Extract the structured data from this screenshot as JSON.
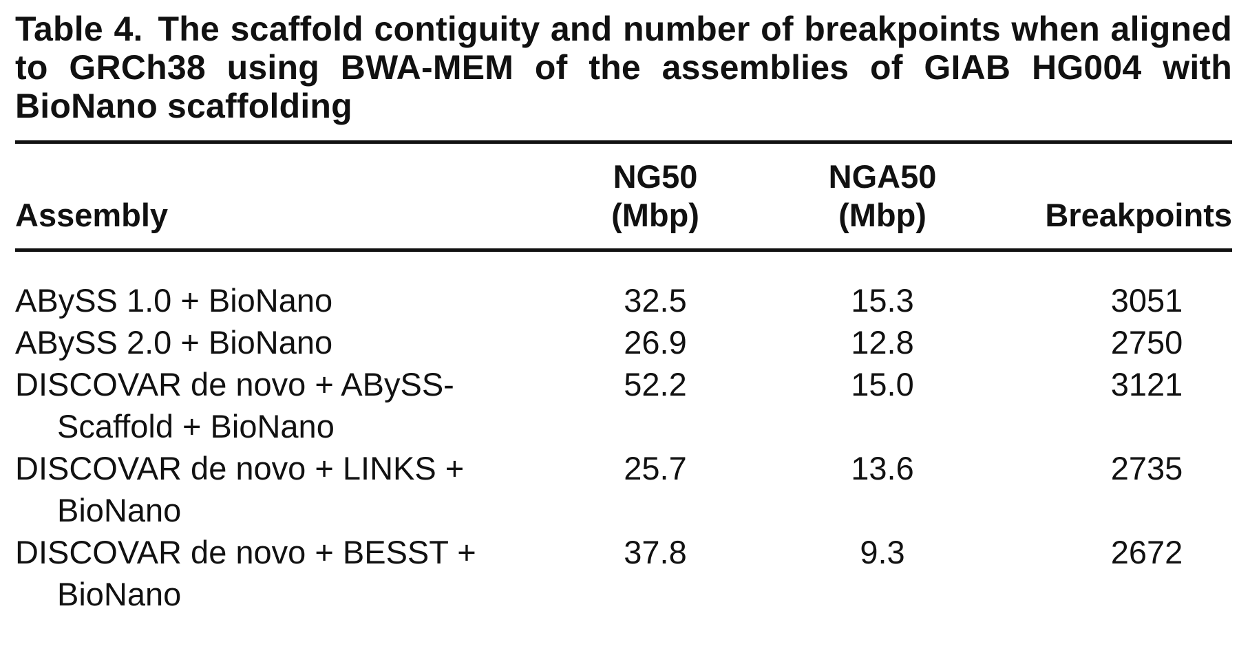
{
  "caption": {
    "label": "Table 4.",
    "text": "The scaffold contiguity and number of breakpoints when aligned to GRCh38 using BWA-MEM of the assemblies of GIAB HG004 with BioNano scaffolding"
  },
  "table": {
    "headers": {
      "assembly": "Assembly",
      "ng50_line1": "NG50",
      "ng50_line2": "(Mbp)",
      "nga50_line1": "NGA50",
      "nga50_line2": "(Mbp)",
      "breakpoints": "Breakpoints"
    },
    "rows": [
      {
        "assembly": "ABySS 1.0 + BioNano",
        "ng50": "32.5",
        "nga50": "15.3",
        "breakpoints": "3051"
      },
      {
        "assembly": "ABySS 2.0 + BioNano",
        "ng50": "26.9",
        "nga50": "12.8",
        "breakpoints": "2750"
      },
      {
        "assembly": "DISCOVAR de novo + ABySS-Scaffold + BioNano",
        "ng50": "52.2",
        "nga50": "15.0",
        "breakpoints": "3121"
      },
      {
        "assembly": "DISCOVAR de novo + LINKS + BioNano",
        "ng50": "25.7",
        "nga50": "13.6",
        "breakpoints": "2735"
      },
      {
        "assembly": "DISCOVAR de novo + BESST + BioNano",
        "ng50": "37.8",
        "nga50": "9.3",
        "breakpoints": "2672"
      }
    ]
  }
}
